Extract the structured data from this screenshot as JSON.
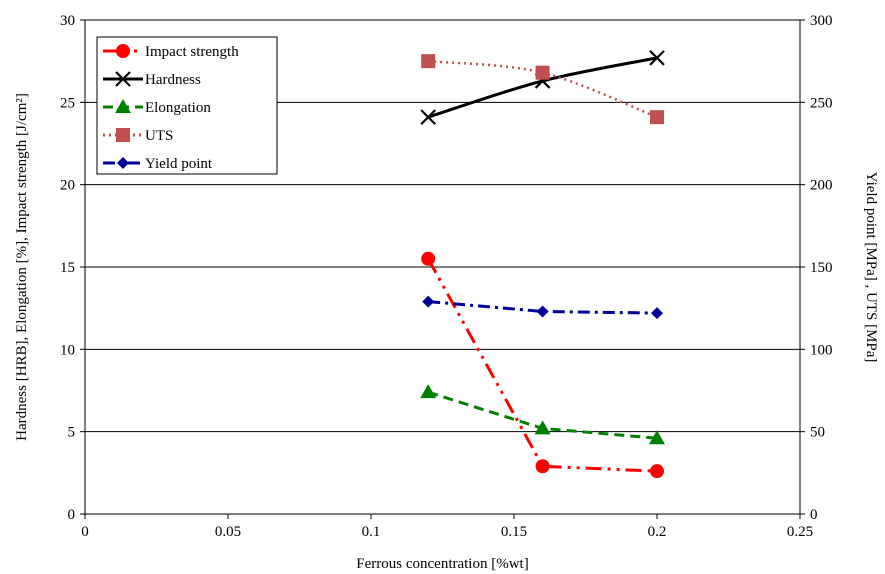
{
  "chart_data": {
    "type": "line",
    "xlabel": "Ferrous concentration [%wt]",
    "ylabel_left": "Hardness [HRB], Elongation [%], Impact strength [J/cm²]",
    "ylabel_right": "Yield point [MPa] , UTS [MPa]",
    "xlim": [
      0,
      0.25
    ],
    "ylim_left": [
      0,
      30
    ],
    "ylim_right": [
      0,
      300
    ],
    "x_ticks": [
      "0",
      "0.05",
      "0.1",
      "0.15",
      "0.2",
      "0.25"
    ],
    "x_tick_values": [
      0,
      0.05,
      0.1,
      0.15,
      0.2,
      0.25
    ],
    "y_ticks_left": [
      "0",
      "5",
      "10",
      "15",
      "20",
      "25",
      "30"
    ],
    "y_tick_values_left": [
      0,
      5,
      10,
      15,
      20,
      25,
      30
    ],
    "y_ticks_right": [
      "0",
      "50",
      "100",
      "150",
      "200",
      "250",
      "300"
    ],
    "y_tick_values_right": [
      0,
      50,
      100,
      150,
      200,
      250,
      300
    ],
    "grid": "horizontal",
    "legend_position": "top-left",
    "series": [
      {
        "name": "Impact strength",
        "axis": "left",
        "color": "#ff0000",
        "marker": "circle",
        "dash": "longdashdotdot",
        "x": [
          0.12,
          0.16,
          0.2
        ],
        "y": [
          15.5,
          2.9,
          2.6
        ]
      },
      {
        "name": "Hardness",
        "axis": "left",
        "color": "#000000",
        "marker": "x",
        "dash": "solid",
        "x": [
          0.12,
          0.16,
          0.2
        ],
        "y": [
          24.1,
          26.3,
          27.7
        ]
      },
      {
        "name": "Elongation",
        "axis": "left",
        "color": "#008000",
        "marker": "triangle",
        "dash": "dashed",
        "x": [
          0.12,
          0.16,
          0.2
        ],
        "y": [
          7.4,
          5.2,
          4.6
        ]
      },
      {
        "name": "UTS",
        "axis": "right",
        "color": "#c0504d",
        "marker": "square",
        "dash": "dotted",
        "x": [
          0.12,
          0.16,
          0.2
        ],
        "y": [
          275,
          268,
          241
        ]
      },
      {
        "name": "Yield point",
        "axis": "right",
        "color": "#000099",
        "marker": "diamond",
        "dash": "dashdot",
        "x": [
          0.12,
          0.16,
          0.2
        ],
        "y": [
          129,
          123,
          122
        ]
      }
    ]
  }
}
